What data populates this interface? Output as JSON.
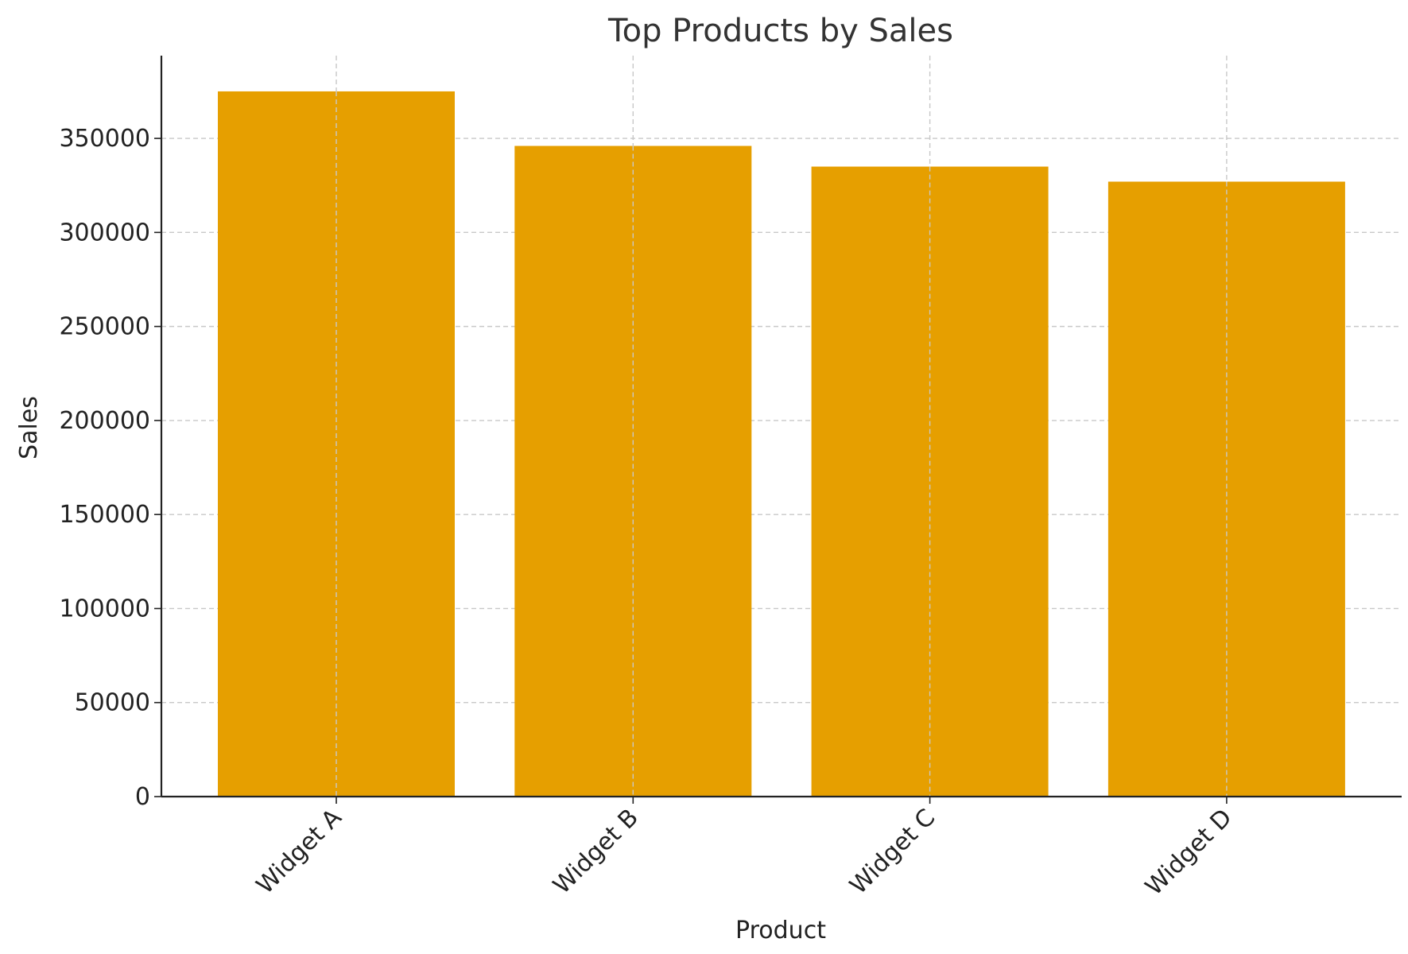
{
  "chart_data": {
    "type": "bar",
    "title": "Top Products by Sales",
    "xlabel": "Product",
    "ylabel": "Sales",
    "categories": [
      "Widget A",
      "Widget B",
      "Widget C",
      "Widget D"
    ],
    "values": [
      375000,
      346000,
      335000,
      327000
    ],
    "ylim": [
      0,
      394000
    ],
    "yticks": [
      0,
      50000,
      100000,
      150000,
      200000,
      250000,
      300000,
      350000
    ],
    "ytick_labels": [
      "0",
      "50000",
      "100000",
      "150000",
      "200000",
      "250000",
      "300000",
      "350000"
    ],
    "grid": true,
    "bar_color": "#E69F00",
    "legend": "none"
  }
}
